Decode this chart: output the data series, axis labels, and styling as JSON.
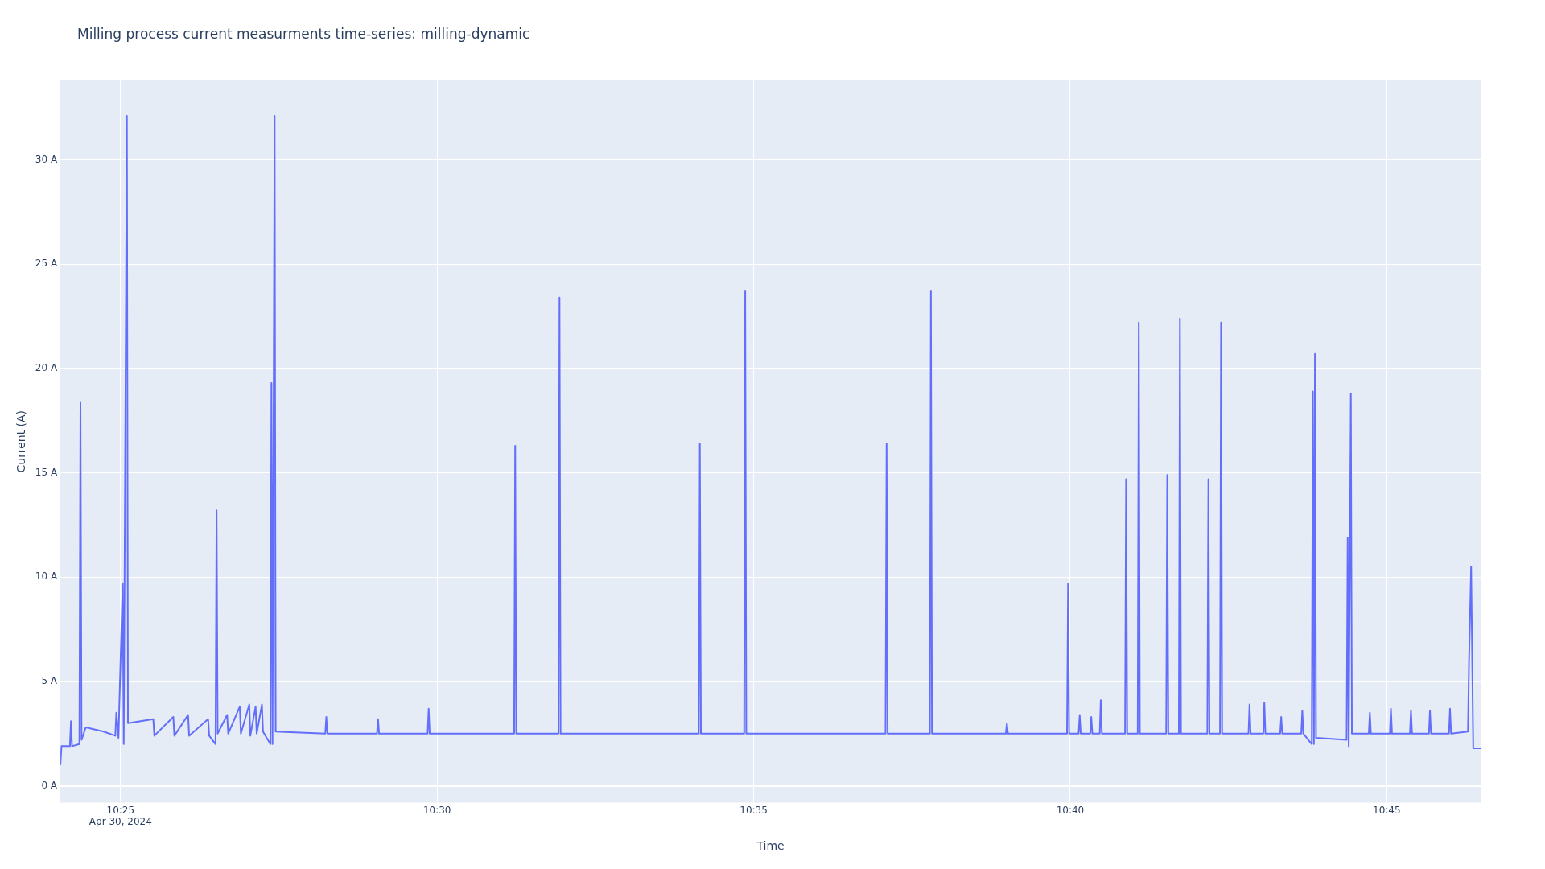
{
  "chart_data": {
    "type": "line",
    "title": "Milling process current measurments time-series: milling-dynamic",
    "xlabel": "Time",
    "ylabel": "Current (A)",
    "xlim": [
      "2024-04-30T10:24:03",
      "2024-04-30T10:46:29"
    ],
    "xticks": [
      {
        "value": "2024-04-30T10:25",
        "label": "10:25\nApr 30, 2024"
      },
      {
        "value": "2024-04-30T10:30",
        "label": "10:30"
      },
      {
        "value": "2024-04-30T10:35",
        "label": "10:35"
      },
      {
        "value": "2024-04-30T10:40",
        "label": "10:40"
      },
      {
        "value": "2024-04-30T10:45",
        "label": "10:45"
      }
    ],
    "ylim": [
      -0.8,
      33.8
    ],
    "yticks": [
      {
        "value": 0,
        "label": "0 A"
      },
      {
        "value": 5,
        "label": "5 A"
      },
      {
        "value": 10,
        "label": "10 A"
      },
      {
        "value": 15,
        "label": "15 A"
      },
      {
        "value": 20,
        "label": "20 A"
      },
      {
        "value": 25,
        "label": "25 A"
      },
      {
        "value": 30,
        "label": "30 A"
      }
    ],
    "grid": true,
    "legend": false,
    "marker": "none",
    "line_style": "solid",
    "series": [
      {
        "color": "#636efa",
        "x": [
          "2024-04-30T10:24:03",
          "2024-04-30T10:24:04",
          "2024-04-30T10:24:12",
          "2024-04-30T10:24:13",
          "2024-04-30T10:24:14",
          "2024-04-30T10:24:21",
          "2024-04-30T10:24:22",
          "2024-04-30T10:24:23",
          "2024-04-30T10:24:27",
          "2024-04-30T10:24:44",
          "2024-04-30T10:24:55",
          "2024-04-30T10:24:56",
          "2024-04-30T10:24:58",
          "2024-04-30T10:25:02",
          "2024-04-30T10:25:03",
          "2024-04-30T10:25:06",
          "2024-04-30T10:25:07",
          "2024-04-30T10:25:31",
          "2024-04-30T10:25:32",
          "2024-04-30T10:25:50",
          "2024-04-30T10:25:51",
          "2024-04-30T10:26:04",
          "2024-04-30T10:26:05",
          "2024-04-30T10:26:23",
          "2024-04-30T10:26:24",
          "2024-04-30T10:26:30",
          "2024-04-30T10:26:31",
          "2024-04-30T10:26:32",
          "2024-04-30T10:26:41",
          "2024-04-30T10:26:42",
          "2024-04-30T10:26:53",
          "2024-04-30T10:26:54",
          "2024-04-30T10:27:02",
          "2024-04-30T10:27:03",
          "2024-04-30T10:27:08",
          "2024-04-30T10:27:09",
          "2024-04-30T10:27:14",
          "2024-04-30T10:27:15",
          "2024-04-30T10:27:22",
          "2024-04-30T10:27:23",
          "2024-04-30T10:27:24",
          "2024-04-30T10:27:26",
          "2024-04-30T10:27:27",
          "2024-04-30T10:28:14",
          "2024-04-30T10:28:15",
          "2024-04-30T10:28:16",
          "2024-04-30T10:29:03",
          "2024-04-30T10:29:04",
          "2024-04-30T10:29:05",
          "2024-04-30T10:29:51",
          "2024-04-30T10:29:52",
          "2024-04-30T10:29:53",
          "2024-04-30T10:31:13",
          "2024-04-30T10:31:14",
          "2024-04-30T10:31:15",
          "2024-04-30T10:31:55",
          "2024-04-30T10:31:56",
          "2024-04-30T10:31:57",
          "2024-04-30T10:34:08",
          "2024-04-30T10:34:09",
          "2024-04-30T10:34:10",
          "2024-04-30T10:34:51",
          "2024-04-30T10:34:52",
          "2024-04-30T10:34:53",
          "2024-04-30T10:37:05",
          "2024-04-30T10:37:06",
          "2024-04-30T10:37:07",
          "2024-04-30T10:37:47",
          "2024-04-30T10:37:48",
          "2024-04-30T10:37:49",
          "2024-04-30T10:38:59",
          "2024-04-30T10:39:00",
          "2024-04-30T10:39:01",
          "2024-04-30T10:39:57",
          "2024-04-30T10:39:58",
          "2024-04-30T10:39:59",
          "2024-04-30T10:40:08",
          "2024-04-30T10:40:09",
          "2024-04-30T10:40:10",
          "2024-04-30T10:40:19",
          "2024-04-30T10:40:20",
          "2024-04-30T10:40:21",
          "2024-04-30T10:40:28",
          "2024-04-30T10:40:29",
          "2024-04-30T10:40:30",
          "2024-04-30T10:40:52",
          "2024-04-30T10:40:53",
          "2024-04-30T10:40:54",
          "2024-04-30T10:41:04",
          "2024-04-30T10:41:05",
          "2024-04-30T10:41:06",
          "2024-04-30T10:41:31",
          "2024-04-30T10:41:32",
          "2024-04-30T10:41:33",
          "2024-04-30T10:41:43",
          "2024-04-30T10:41:44",
          "2024-04-30T10:41:45",
          "2024-04-30T10:42:10",
          "2024-04-30T10:42:11",
          "2024-04-30T10:42:12",
          "2024-04-30T10:42:22",
          "2024-04-30T10:42:23",
          "2024-04-30T10:42:24",
          "2024-04-30T10:42:49",
          "2024-04-30T10:42:50",
          "2024-04-30T10:42:51",
          "2024-04-30T10:43:03",
          "2024-04-30T10:43:04",
          "2024-04-30T10:43:05",
          "2024-04-30T10:43:19",
          "2024-04-30T10:43:20",
          "2024-04-30T10:43:21",
          "2024-04-30T10:43:39",
          "2024-04-30T10:43:40",
          "2024-04-30T10:43:41",
          "2024-04-30T10:43:49",
          "2024-04-30T10:43:50",
          "2024-04-30T10:43:51",
          "2024-04-30T10:43:52",
          "2024-04-30T10:43:53",
          "2024-04-30T10:44:22",
          "2024-04-30T10:44:23",
          "2024-04-30T10:44:24",
          "2024-04-30T10:44:26",
          "2024-04-30T10:44:27",
          "2024-04-30T10:44:43",
          "2024-04-30T10:44:44",
          "2024-04-30T10:44:45",
          "2024-04-30T10:45:03",
          "2024-04-30T10:45:04",
          "2024-04-30T10:45:05",
          "2024-04-30T10:45:22",
          "2024-04-30T10:45:23",
          "2024-04-30T10:45:24",
          "2024-04-30T10:45:40",
          "2024-04-30T10:45:41",
          "2024-04-30T10:45:42",
          "2024-04-30T10:45:59",
          "2024-04-30T10:46:00",
          "2024-04-30T10:46:01",
          "2024-04-30T10:46:17",
          "2024-04-30T10:46:18",
          "2024-04-30T10:46:20",
          "2024-04-30T10:46:22",
          "2024-04-30T10:46:29"
        ],
        "values": [
          1.0,
          1.9,
          1.9,
          3.1,
          1.9,
          2.0,
          18.4,
          2.2,
          2.8,
          2.6,
          2.4,
          3.5,
          2.3,
          9.7,
          2.0,
          32.1,
          3.0,
          3.2,
          2.4,
          3.3,
          2.4,
          3.4,
          2.4,
          3.2,
          2.4,
          2.0,
          13.2,
          2.5,
          3.4,
          2.5,
          3.8,
          2.5,
          3.9,
          2.4,
          3.8,
          2.5,
          3.9,
          2.6,
          2.0,
          19.3,
          2.0,
          32.1,
          2.6,
          2.5,
          3.3,
          2.5,
          2.5,
          3.2,
          2.5,
          2.5,
          3.7,
          2.5,
          2.5,
          16.3,
          2.5,
          2.5,
          23.4,
          2.5,
          2.5,
          16.4,
          2.5,
          2.5,
          23.7,
          2.5,
          2.5,
          16.4,
          2.5,
          2.5,
          23.7,
          2.5,
          2.5,
          3.0,
          2.5,
          2.5,
          9.7,
          2.5,
          2.5,
          3.4,
          2.5,
          2.5,
          3.3,
          2.5,
          2.5,
          4.1,
          2.5,
          2.5,
          14.7,
          2.5,
          2.5,
          22.2,
          2.5,
          2.5,
          14.9,
          2.5,
          2.5,
          22.4,
          2.5,
          2.5,
          14.7,
          2.5,
          2.5,
          22.2,
          2.5,
          2.5,
          3.9,
          2.5,
          2.5,
          4.0,
          2.5,
          2.5,
          3.3,
          2.5,
          2.5,
          3.6,
          2.5,
          2.0,
          18.9,
          2.0,
          20.7,
          2.3,
          2.2,
          11.9,
          1.9,
          18.8,
          2.5,
          2.5,
          3.5,
          2.5,
          2.5,
          3.7,
          2.5,
          2.5,
          3.6,
          2.5,
          2.5,
          3.6,
          2.5,
          2.5,
          3.7,
          2.5,
          2.6,
          5.9,
          10.5,
          1.8,
          1.8
        ]
      }
    ]
  }
}
